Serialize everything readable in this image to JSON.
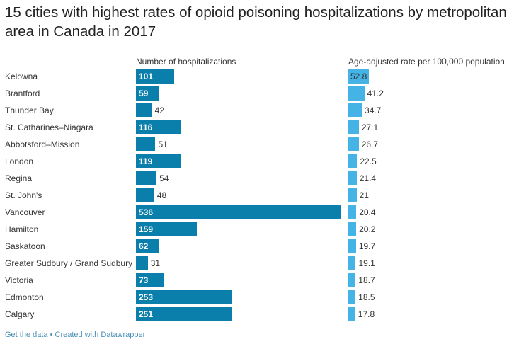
{
  "title": "15 cities with highest rates of opioid poisoning hospitalizations by metropolitan area in Canada in 2017",
  "footer": {
    "get_data": "Get the data",
    "separator": " • ",
    "created": "Created with Datawrapper"
  },
  "colors": {
    "count_bar": "#0b7fab",
    "rate_bar": "#45b3e6"
  },
  "chart_data": {
    "type": "bar",
    "categories": [
      "Kelowna",
      "Brantford",
      "Thunder Bay",
      "St. Catharines–Niagara",
      "Abbotsford–Mission",
      "London",
      "Regina",
      "St. John's",
      "Vancouver",
      "Hamilton",
      "Saskatoon",
      "Greater Sudbury / Grand Sudbury",
      "Victoria",
      "Edmonton",
      "Calgary"
    ],
    "series": [
      {
        "name": "Number of hospitalizations",
        "values": [
          101,
          59,
          42,
          116,
          51,
          119,
          54,
          48,
          536,
          159,
          62,
          31,
          73,
          253,
          251
        ]
      },
      {
        "name": "Age-adjusted rate per 100,000 population",
        "values": [
          52.8,
          41.2,
          34.7,
          27.1,
          26.7,
          22.5,
          21.4,
          21,
          20.4,
          20.2,
          19.7,
          19.1,
          18.7,
          18.5,
          17.8
        ]
      }
    ]
  }
}
